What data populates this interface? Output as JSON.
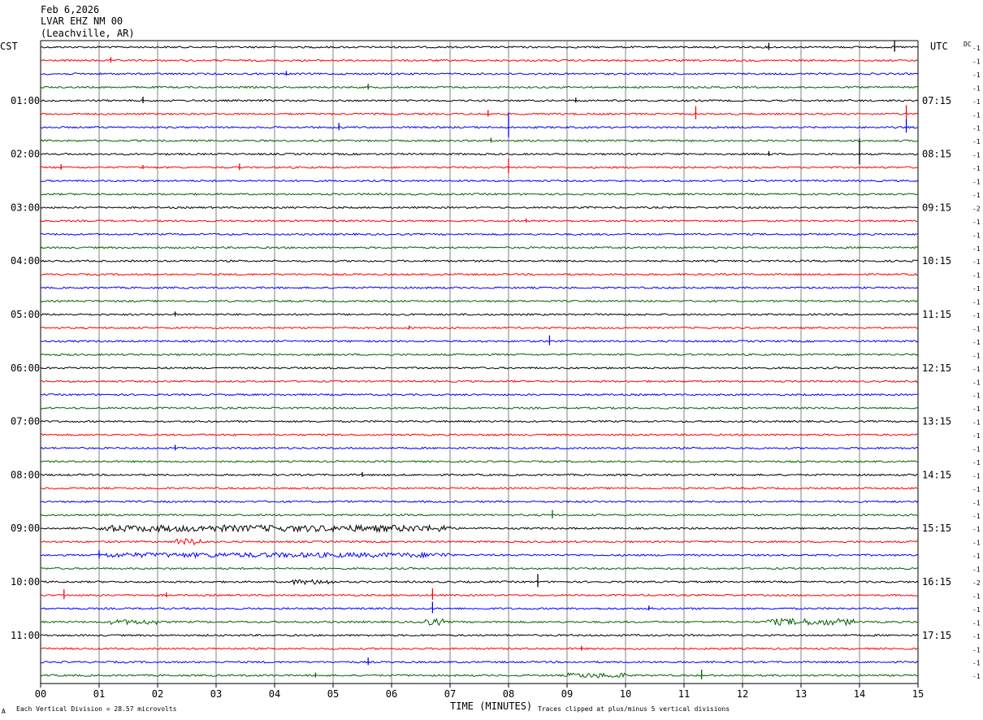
{
  "header": {
    "date": "Feb 6,2026",
    "station": "LVAR EHZ NM 00",
    "location": "(Leachville, AR)"
  },
  "labels": {
    "left_zone": "CST",
    "right_zone": "UTC",
    "dc": "DC",
    "xlabel": "TIME (MINUTES)",
    "division_note": "Each Vertical Division =   28.57 microvolts",
    "clip_note": "Traces clipped at plus/minus 5 vertical divisions",
    "corner_mark": "A"
  },
  "colors": {
    "cycle": [
      "#000000",
      "#ff0000",
      "#0000ff",
      "#006400"
    ],
    "grid": "#808080",
    "axis": "#000000"
  },
  "chart_data": {
    "type": "line",
    "subtype": "helicorder",
    "x_range_minutes": [
      0,
      15
    ],
    "x_ticks": [
      "00",
      "01",
      "02",
      "03",
      "04",
      "05",
      "06",
      "07",
      "08",
      "09",
      "10",
      "11",
      "12",
      "13",
      "14",
      "15"
    ],
    "row_minutes": 15,
    "rows": 48,
    "left_hour_labels": [
      "01:00",
      "02:00",
      "03:00",
      "04:00",
      "05:00",
      "06:00",
      "07:00",
      "08:00",
      "09:00",
      "10:00",
      "11:00"
    ],
    "right_hour_labels": [
      "07:15",
      "08:15",
      "09:15",
      "10:15",
      "11:15",
      "12:15",
      "13:15",
      "14:15",
      "15:15",
      "16:15",
      "17:15"
    ],
    "dc_offsets": [
      "-1",
      "-1",
      "-1",
      "-1",
      "-1",
      "-1",
      "-1",
      "-1",
      "-1",
      "-1",
      "-1",
      "-1",
      "-2",
      "-1",
      "-1",
      "-1",
      "-1",
      "-1",
      "-1",
      "-1",
      "-1",
      "-1",
      "-1",
      "-1",
      "-1",
      "-1",
      "-1",
      "-1",
      "-1",
      "-1",
      "-1",
      "-1",
      "-1",
      "-1",
      "-1",
      "-1",
      "-1",
      "-1",
      "-1",
      "-1",
      "-2",
      "-1",
      "-1",
      "-1",
      "-1",
      "-1",
      "-1",
      "-1"
    ],
    "events": [
      {
        "row": 0,
        "minute": 14.6,
        "amp": 14
      },
      {
        "row": 0,
        "minute": 12.45,
        "amp": 9
      },
      {
        "row": 1,
        "minute": 1.2,
        "amp": 7
      },
      {
        "row": 2,
        "minute": 4.2,
        "amp": 6
      },
      {
        "row": 3,
        "minute": 5.6,
        "amp": 7
      },
      {
        "row": 4,
        "minute": 1.75,
        "amp": 8
      },
      {
        "row": 4,
        "minute": 9.15,
        "amp": 6
      },
      {
        "row": 5,
        "minute": 7.65,
        "amp": 8
      },
      {
        "row": 5,
        "minute": 11.2,
        "amp": 16
      },
      {
        "row": 5,
        "minute": 14.8,
        "amp": 18
      },
      {
        "row": 6,
        "minute": 5.1,
        "amp": 9
      },
      {
        "row": 6,
        "minute": 8.0,
        "amp": 30
      },
      {
        "row": 6,
        "minute": 14.8,
        "amp": 16
      },
      {
        "row": 7,
        "minute": 7.7,
        "amp": 6
      },
      {
        "row": 8,
        "minute": 12.45,
        "amp": 6
      },
      {
        "row": 8,
        "minute": 14.0,
        "amp": 32
      },
      {
        "row": 9,
        "minute": 0.35,
        "amp": 7
      },
      {
        "row": 9,
        "minute": 3.4,
        "amp": 8
      },
      {
        "row": 9,
        "minute": 1.75,
        "amp": 5
      },
      {
        "row": 9,
        "minute": 8.0,
        "amp": 18
      },
      {
        "row": 13,
        "minute": 8.3,
        "amp": 5
      },
      {
        "row": 20,
        "minute": 2.3,
        "amp": 6
      },
      {
        "row": 21,
        "minute": 6.3,
        "amp": 5
      },
      {
        "row": 22,
        "minute": 8.7,
        "amp": 12
      },
      {
        "row": 30,
        "minute": 2.3,
        "amp": 7
      },
      {
        "row": 32,
        "minute": 5.5,
        "amp": 6
      },
      {
        "row": 35,
        "minute": 8.75,
        "amp": 10
      },
      {
        "row": 38,
        "minute": 1.0,
        "amp": 10
      },
      {
        "row": 40,
        "minute": 8.5,
        "amp": 16
      },
      {
        "row": 41,
        "minute": 0.4,
        "amp": 12
      },
      {
        "row": 41,
        "minute": 6.7,
        "amp": 14
      },
      {
        "row": 41,
        "minute": 2.15,
        "amp": 6
      },
      {
        "row": 42,
        "minute": 6.7,
        "amp": 14
      },
      {
        "row": 42,
        "minute": 10.4,
        "amp": 6
      },
      {
        "row": 45,
        "minute": 9.25,
        "amp": 6
      },
      {
        "row": 46,
        "minute": 5.6,
        "amp": 9
      },
      {
        "row": 47,
        "minute": 11.3,
        "amp": 12
      },
      {
        "row": 47,
        "minute": 4.7,
        "amp": 6
      }
    ],
    "noisy_segments": [
      {
        "row": 36,
        "from": 1.0,
        "to": 7.0,
        "amp": 4
      },
      {
        "row": 37,
        "from": 2.3,
        "to": 2.8,
        "amp": 4
      },
      {
        "row": 38,
        "from": 1.0,
        "to": 7.0,
        "amp": 3
      },
      {
        "row": 40,
        "from": 4.3,
        "to": 5.0,
        "amp": 3
      },
      {
        "row": 43,
        "from": 12.4,
        "to": 13.9,
        "amp": 4
      },
      {
        "row": 43,
        "from": 6.5,
        "to": 6.9,
        "amp": 4
      },
      {
        "row": 43,
        "from": 1.2,
        "to": 2.0,
        "amp": 3
      },
      {
        "row": 47,
        "from": 9.0,
        "to": 10.0,
        "amp": 3
      }
    ]
  }
}
